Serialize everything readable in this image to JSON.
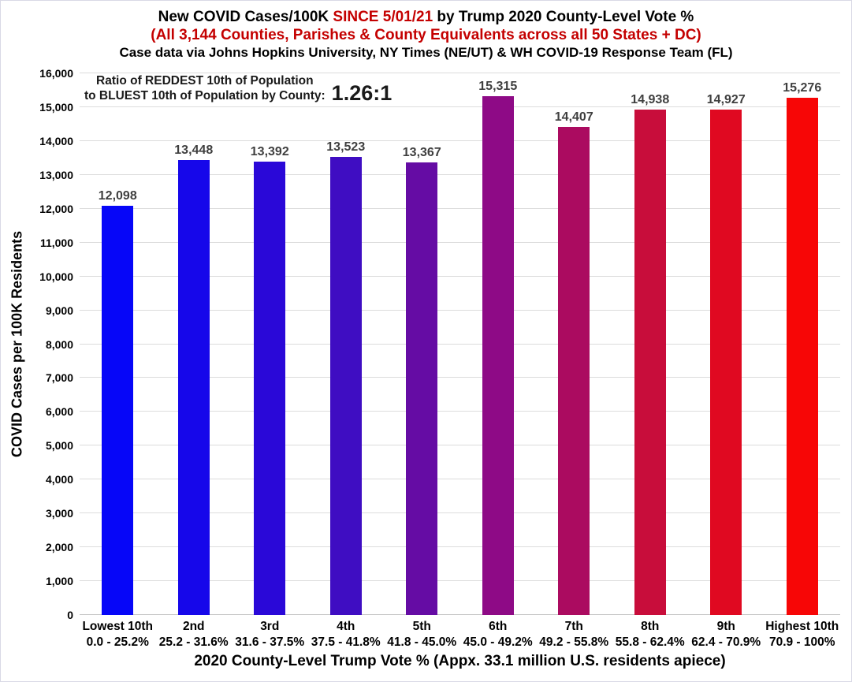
{
  "page": {
    "title": {
      "part1": "New COVID Cases/100K ",
      "highlight": "SINCE 5/01/21",
      "part2": " by Trump 2020 County-Level Vote %"
    },
    "subtitle": "(All 3,144 Counties, Parishes & County Equivalents across all 50 States + DC)",
    "source_line": "Case data via Johns Hopkins University, NY Times (NE/UT) & WH COVID-19 Response Team (FL)"
  },
  "annotation": {
    "line1": "Ratio of REDDEST 10th of Population",
    "line2": "to BLUEST 10th of Population by County:",
    "ratio": "1.26:1"
  },
  "colors": {
    "accent_red": "#c40000",
    "value_label": "#3f3f3f",
    "gridline": "#dcdcdc",
    "baseline": "#c6c6c6"
  },
  "chart_data": {
    "type": "bar",
    "title": "New COVID Cases/100K SINCE 5/01/21 by Trump 2020 County-Level Vote %",
    "subtitle": "(All 3,144 Counties, Parishes & County Equivalents across all 50 States + DC)",
    "source": "Case data via Johns Hopkins University, NY Times (NE/UT) & WH COVID-19 Response Team (FL)",
    "categories": [
      "Lowest 10th",
      "2nd",
      "3rd",
      "4th",
      "5th",
      "6th",
      "7th",
      "8th",
      "9th",
      "Highest 10th"
    ],
    "category_ranges": [
      "0.0 - 25.2%",
      "25.2 - 31.6%",
      "31.6 - 37.5%",
      "37.5 - 41.8%",
      "41.8 - 45.0%",
      "45.0 - 49.2%",
      "49.2 - 55.8%",
      "55.8 - 62.4%",
      "62.4 - 70.9%",
      "70.9 - 100%"
    ],
    "values": [
      12098,
      13448,
      13392,
      13523,
      13367,
      15315,
      14407,
      14938,
      14927,
      15276
    ],
    "value_labels": [
      "12,098",
      "13,448",
      "13,392",
      "13,523",
      "13,367",
      "15,315",
      "14,407",
      "14,938",
      "14,927",
      "15,276"
    ],
    "bar_colors": [
      "#0606f8",
      "#1607ea",
      "#2a08d8",
      "#3f0dc2",
      "#650ca4",
      "#8e0a86",
      "#ab0b60",
      "#c80d3b",
      "#e00921",
      "#f70606"
    ],
    "xlabel": "2020 County-Level Trump Vote % (Appx. 33.1 million U.S. residents apiece)",
    "ylabel": "COVID Cases per 100K Residents",
    "ylim": [
      0,
      16000
    ],
    "ytick_interval": 1000,
    "ytick_labels": [
      "0",
      "1,000",
      "2,000",
      "3,000",
      "4,000",
      "5,000",
      "6,000",
      "7,000",
      "8,000",
      "9,000",
      "10,000",
      "11,000",
      "12,000",
      "13,000",
      "14,000",
      "15,000",
      "16,000"
    ],
    "grid": true,
    "legend": "none",
    "annotation": "Ratio of REDDEST 10th of Population to BLUEST 10th of Population by County: 1.26:1"
  }
}
